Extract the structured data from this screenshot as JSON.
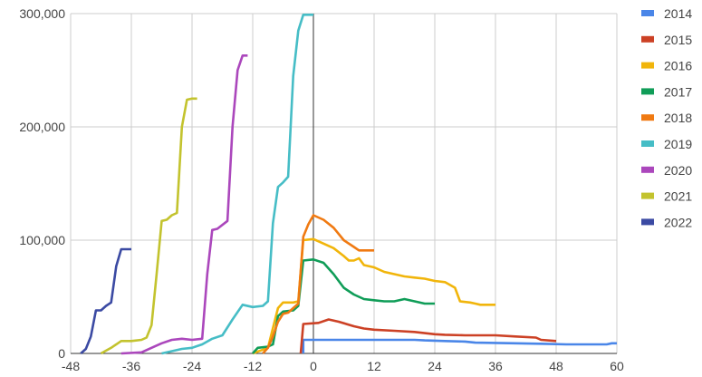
{
  "chart_data": {
    "type": "line",
    "title": "",
    "xlabel": "",
    "ylabel": "",
    "xlim": [
      -48,
      60
    ],
    "ylim": [
      0,
      300000
    ],
    "x_ticks": [
      -48,
      -36,
      -24,
      -12,
      0,
      12,
      24,
      36,
      48,
      60
    ],
    "x_tick_labels": [
      "-48",
      "-36",
      "-24",
      "-12",
      "0",
      "12",
      "24",
      "36",
      "48",
      "60"
    ],
    "y_ticks": [
      0,
      100000,
      200000,
      300000
    ],
    "y_tick_labels": [
      "0",
      "100,000",
      "200,000",
      "300,000"
    ],
    "grid": true,
    "legend_position": "right",
    "series": [
      {
        "name": "2014",
        "color": "#4a86e8",
        "points": [
          [
            -2,
            0
          ],
          [
            -2,
            12000
          ],
          [
            10,
            12000
          ],
          [
            20,
            12000
          ],
          [
            22,
            11500
          ],
          [
            26,
            11000
          ],
          [
            30,
            10500
          ],
          [
            32,
            9500
          ],
          [
            40,
            9000
          ],
          [
            46,
            8500
          ],
          [
            50,
            8000
          ],
          [
            54,
            8000
          ],
          [
            58,
            8000
          ],
          [
            59,
            9000
          ],
          [
            60,
            9000
          ]
        ]
      },
      {
        "name": "2015",
        "color": "#cc4125",
        "points": [
          [
            -2.5,
            0
          ],
          [
            -2,
            26000
          ],
          [
            1,
            27000
          ],
          [
            3,
            30000
          ],
          [
            5,
            28000
          ],
          [
            8,
            24000
          ],
          [
            10,
            22000
          ],
          [
            12,
            21000
          ],
          [
            16,
            20000
          ],
          [
            20,
            19000
          ],
          [
            24,
            17000
          ],
          [
            26,
            16500
          ],
          [
            30,
            16000
          ],
          [
            36,
            16000
          ],
          [
            40,
            15000
          ],
          [
            44,
            14000
          ],
          [
            45,
            12000
          ],
          [
            48,
            11000
          ]
        ]
      },
      {
        "name": "2016",
        "color": "#f1b50b",
        "points": [
          [
            -12,
            0
          ],
          [
            -9,
            5000
          ],
          [
            -7,
            40000
          ],
          [
            -6,
            45000
          ],
          [
            -4,
            45000
          ],
          [
            -3,
            46000
          ],
          [
            -2,
            100000
          ],
          [
            0,
            101000
          ],
          [
            2,
            97000
          ],
          [
            4,
            93000
          ],
          [
            6,
            86000
          ],
          [
            7,
            82000
          ],
          [
            8,
            82000
          ],
          [
            9,
            84000
          ],
          [
            10,
            78000
          ],
          [
            12,
            76000
          ],
          [
            14,
            72000
          ],
          [
            16,
            70000
          ],
          [
            18,
            68000
          ],
          [
            20,
            67000
          ],
          [
            22,
            66000
          ],
          [
            24,
            64000
          ],
          [
            26,
            63000
          ],
          [
            28,
            58000
          ],
          [
            29,
            46000
          ],
          [
            31,
            45000
          ],
          [
            32,
            44000
          ],
          [
            33,
            43000
          ],
          [
            36,
            43000
          ]
        ]
      },
      {
        "name": "2017",
        "color": "#109d58",
        "points": [
          [
            -12,
            0
          ],
          [
            -11,
            5000
          ],
          [
            -9,
            6000
          ],
          [
            -8,
            8000
          ],
          [
            -7,
            33000
          ],
          [
            -6,
            37000
          ],
          [
            -4,
            38000
          ],
          [
            -3,
            42000
          ],
          [
            -2,
            82000
          ],
          [
            0,
            83000
          ],
          [
            2,
            80000
          ],
          [
            4,
            70000
          ],
          [
            6,
            58000
          ],
          [
            8,
            52000
          ],
          [
            10,
            48000
          ],
          [
            12,
            47000
          ],
          [
            14,
            46000
          ],
          [
            16,
            46000
          ],
          [
            18,
            48000
          ],
          [
            20,
            46000
          ],
          [
            22,
            44000
          ],
          [
            24,
            44000
          ]
        ]
      },
      {
        "name": "2018",
        "color": "#f07a12",
        "points": [
          [
            -10,
            0
          ],
          [
            -9,
            5000
          ],
          [
            -8,
            15000
          ],
          [
            -7,
            28000
          ],
          [
            -6,
            35000
          ],
          [
            -5,
            36000
          ],
          [
            -4,
            40000
          ],
          [
            -3,
            44000
          ],
          [
            -2,
            103000
          ],
          [
            -1,
            114000
          ],
          [
            0,
            122000
          ],
          [
            2,
            118000
          ],
          [
            4,
            111000
          ],
          [
            6,
            100000
          ],
          [
            8,
            94000
          ],
          [
            9,
            91000
          ],
          [
            12,
            91000
          ]
        ]
      },
      {
        "name": "2019",
        "color": "#46bdc6",
        "points": [
          [
            -30,
            0
          ],
          [
            -28,
            2000
          ],
          [
            -26,
            4000
          ],
          [
            -24,
            5000
          ],
          [
            -22,
            8000
          ],
          [
            -20,
            13000
          ],
          [
            -18,
            16000
          ],
          [
            -16,
            30000
          ],
          [
            -14,
            43000
          ],
          [
            -12,
            41000
          ],
          [
            -10,
            42000
          ],
          [
            -9,
            46000
          ],
          [
            -8,
            115000
          ],
          [
            -7,
            147000
          ],
          [
            -6,
            151000
          ],
          [
            -5,
            156000
          ],
          [
            -4,
            245000
          ],
          [
            -3,
            285000
          ],
          [
            -2,
            299000
          ],
          [
            0,
            299000
          ]
        ]
      },
      {
        "name": "2020",
        "color": "#ab47bc",
        "points": [
          [
            -38,
            0
          ],
          [
            -34,
            1000
          ],
          [
            -32,
            5000
          ],
          [
            -30,
            9000
          ],
          [
            -28,
            12000
          ],
          [
            -26,
            13000
          ],
          [
            -24,
            12000
          ],
          [
            -22,
            13000
          ],
          [
            -21,
            70000
          ],
          [
            -20,
            109000
          ],
          [
            -19,
            110000
          ],
          [
            -17,
            117000
          ],
          [
            -16,
            200000
          ],
          [
            -15,
            250000
          ],
          [
            -14,
            263000
          ],
          [
            -13,
            263000
          ]
        ]
      },
      {
        "name": "2021",
        "color": "#c3c32e",
        "points": [
          [
            -42,
            0
          ],
          [
            -40,
            5000
          ],
          [
            -38,
            11000
          ],
          [
            -36,
            11000
          ],
          [
            -34,
            12000
          ],
          [
            -33,
            14000
          ],
          [
            -32,
            25000
          ],
          [
            -31,
            70000
          ],
          [
            -30,
            117000
          ],
          [
            -29,
            118000
          ],
          [
            -28,
            122000
          ],
          [
            -27,
            124000
          ],
          [
            -26,
            200000
          ],
          [
            -25,
            224000
          ],
          [
            -24,
            225000
          ],
          [
            -23,
            225000
          ]
        ]
      },
      {
        "name": "2022",
        "color": "#3b4aa3",
        "points": [
          [
            -46,
            0
          ],
          [
            -45,
            4000
          ],
          [
            -44,
            15000
          ],
          [
            -43,
            38000
          ],
          [
            -42,
            38000
          ],
          [
            -41,
            42000
          ],
          [
            -40,
            45000
          ],
          [
            -39,
            77000
          ],
          [
            -38,
            92000
          ],
          [
            -36,
            92000
          ]
        ]
      }
    ]
  }
}
